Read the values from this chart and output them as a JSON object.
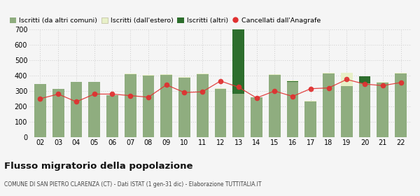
{
  "years": [
    "02",
    "03",
    "04",
    "05",
    "06",
    "07",
    "08",
    "09",
    "10",
    "11",
    "12",
    "13",
    "14",
    "15",
    "16",
    "17",
    "18",
    "19",
    "20",
    "21",
    "22"
  ],
  "iscritti_altri_comuni": [
    345,
    315,
    360,
    360,
    275,
    410,
    400,
    405,
    385,
    410,
    315,
    280,
    260,
    405,
    360,
    230,
    415,
    330,
    350,
    355,
    415
  ],
  "iscritti_estero": [
    0,
    0,
    0,
    0,
    0,
    5,
    5,
    5,
    5,
    5,
    5,
    0,
    0,
    5,
    10,
    5,
    5,
    90,
    5,
    5,
    5
  ],
  "iscritti_altri": [
    0,
    0,
    0,
    0,
    0,
    0,
    0,
    0,
    0,
    0,
    0,
    420,
    0,
    0,
    5,
    0,
    0,
    0,
    45,
    0,
    0
  ],
  "cancellati": [
    250,
    280,
    230,
    280,
    280,
    270,
    260,
    340,
    290,
    295,
    365,
    325,
    255,
    300,
    265,
    315,
    320,
    375,
    345,
    335,
    355
  ],
  "bar_color_comuni": "#8fad7f",
  "bar_color_estero": "#e8f0c8",
  "bar_color_altri": "#2d6e2d",
  "line_color": "#e03030",
  "ylim": [
    0,
    700
  ],
  "yticks": [
    0,
    100,
    200,
    300,
    400,
    500,
    600,
    700
  ],
  "title": "Flusso migratorio della popolazione",
  "subtitle": "COMUNE DI SAN PIETRO CLARENZA (CT) - Dati ISTAT (1 gen-31 dic) - Elaborazione TUTTITALIA.IT",
  "legend_labels": [
    "Iscritti (da altri comuni)",
    "Iscritti (dall'estero)",
    "Iscritti (altri)",
    "Cancellati dall'Anagrafe"
  ],
  "bg_color": "#f5f5f5",
  "grid_color": "#cccccc"
}
